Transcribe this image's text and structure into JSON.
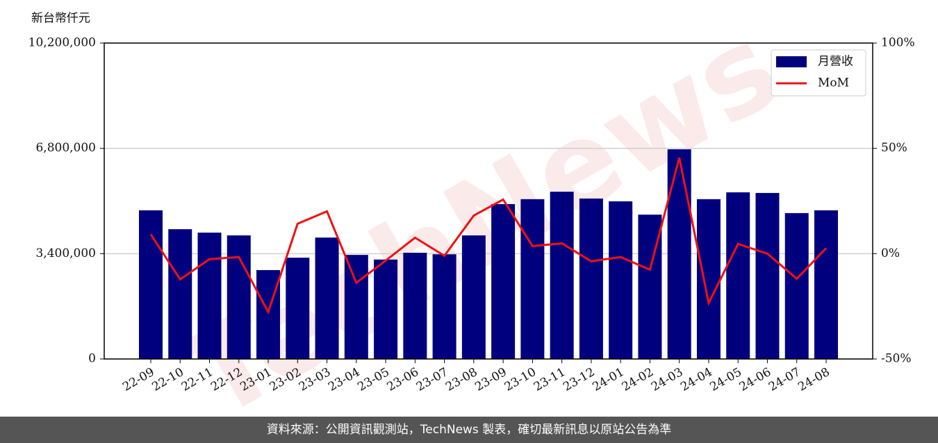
{
  "chart_data": {
    "type": "bar-line",
    "y_label": "新台幣仟元",
    "watermark": "TechNews",
    "footer": "資料來源：公開資訊觀測站，TechNews 製表，確切最新訊息以原站公告為準",
    "categories": [
      "22-09",
      "22-10",
      "22-11",
      "22-12",
      "23-01",
      "23-02",
      "23-03",
      "23-04",
      "23-05",
      "23-06",
      "23-07",
      "23-08",
      "23-09",
      "23-10",
      "23-11",
      "23-12",
      "24-01",
      "24-02",
      "24-03",
      "24-04",
      "24-05",
      "24-06",
      "24-07",
      "24-08"
    ],
    "series": [
      {
        "name": "月營收",
        "type": "bar",
        "color": "#00007f",
        "values": [
          4800000,
          4190000,
          4080000,
          3990000,
          2870000,
          3270000,
          3920000,
          3360000,
          3210000,
          3430000,
          3380000,
          3990000,
          5000000,
          5160000,
          5400000,
          5180000,
          5090000,
          4660000,
          6770000,
          5160000,
          5380000,
          5360000,
          4710000,
          4800000
        ]
      },
      {
        "name": "MoM",
        "type": "line",
        "axis": "y2",
        "color": "#ee1111",
        "values": [
          9.2,
          -12.2,
          -2.6,
          -1.6,
          -27.7,
          14.2,
          20.1,
          -13.8,
          -3.3,
          7.6,
          -1.0,
          18.1,
          25.7,
          3.6,
          4.9,
          -3.6,
          -1.6,
          -7.6,
          45.5,
          -23.4,
          4.6,
          0,
          -11.9,
          2.6
        ]
      }
    ],
    "ylim": [
      0,
      10200000
    ],
    "yticks": [
      0,
      {
        "value": 3400000,
        "label": "3,400,000"
      },
      {
        "value": 6800000,
        "label": "6,800,000"
      },
      {
        "value": 10200000,
        "label": "10,200,000"
      }
    ],
    "y2lim": [
      -50,
      100
    ],
    "y2ticks": [
      {
        "value": -50,
        "label": "-50%"
      },
      {
        "value": 0,
        "label": "0%"
      },
      {
        "value": 50,
        "label": "50%"
      },
      {
        "value": 100,
        "label": "100%"
      }
    ],
    "grid": true,
    "legend": "upper right"
  }
}
